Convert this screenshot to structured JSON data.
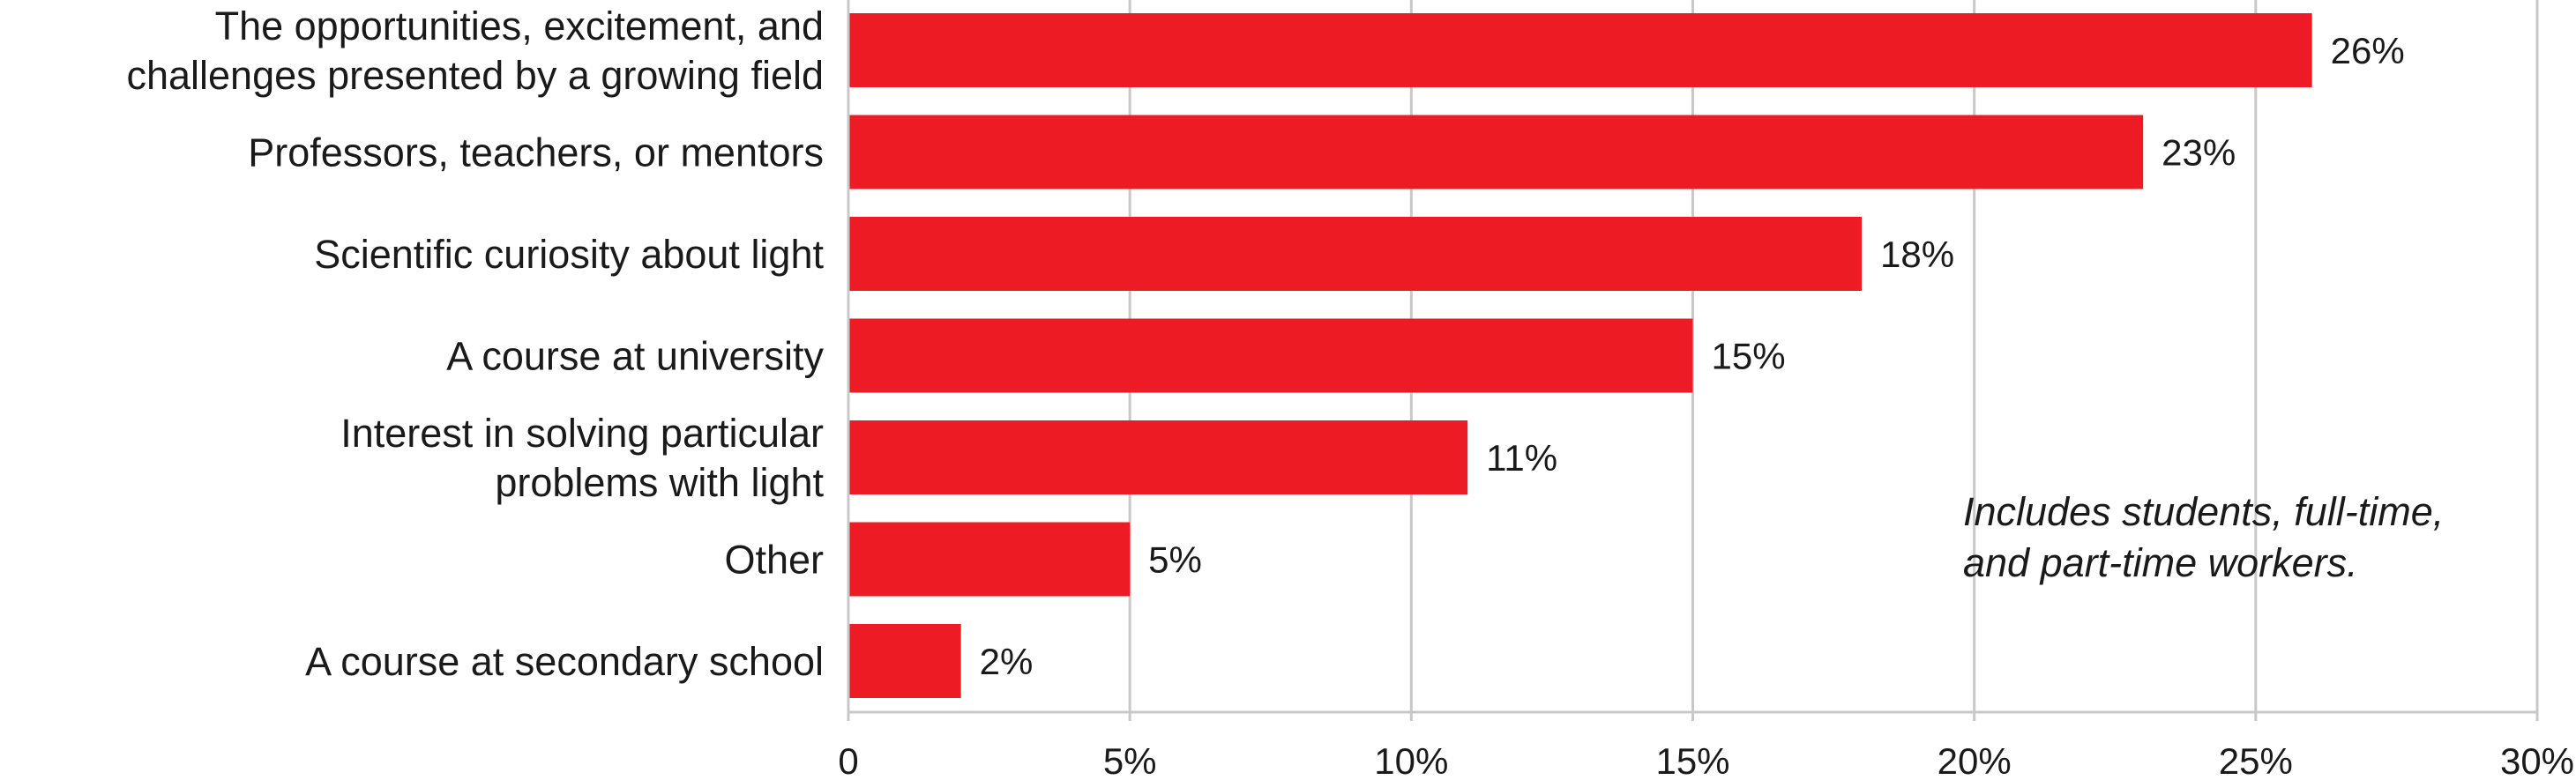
{
  "chart_data": {
    "type": "bar",
    "orientation": "horizontal",
    "categories": [
      [
        "The opportunities, excitement, and",
        "challenges presented by a growing field"
      ],
      [
        "Professors, teachers, or mentors"
      ],
      [
        "Scientific curiosity about light"
      ],
      [
        "A course at university"
      ],
      [
        "Interest in solving particular",
        "problems with light"
      ],
      [
        "Other"
      ],
      [
        "A course at secondary school"
      ]
    ],
    "values": [
      26,
      23,
      18,
      15,
      11,
      5,
      2
    ],
    "value_labels": [
      "26%",
      "23%",
      "18%",
      "15%",
      "11%",
      "5%",
      "2%"
    ],
    "xlim": [
      0,
      30
    ],
    "xticks": [
      0,
      5,
      10,
      15,
      20,
      25,
      30
    ],
    "xtick_labels": [
      "0",
      "5%",
      "10%",
      "15%",
      "20%",
      "25%",
      "30%"
    ],
    "grid": "vertical",
    "bar_color": "#ed1c24",
    "grid_color": "#c8c8c8",
    "annotation": [
      "Includes students, full-time,",
      "and part-time workers."
    ]
  }
}
